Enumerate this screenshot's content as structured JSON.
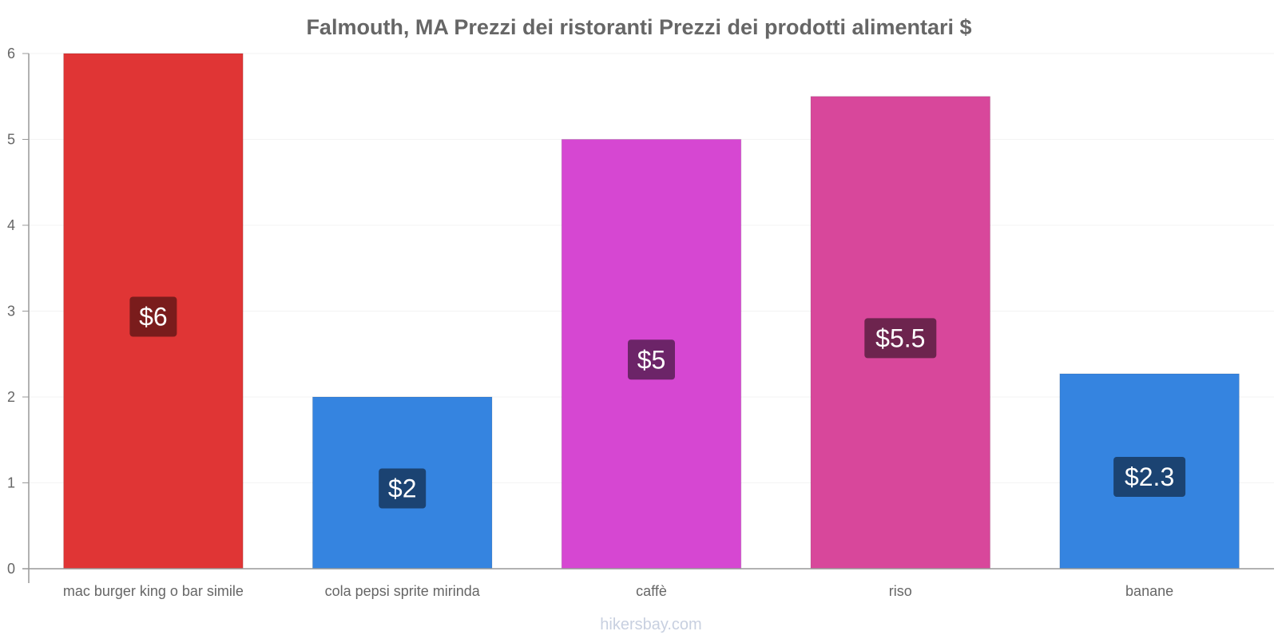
{
  "chart_data": {
    "type": "bar",
    "title": "Falmouth, MA Prezzi dei ristoranti Prezzi dei prodotti alimentari $",
    "xlabel": "",
    "ylabel": "",
    "ylim": [
      0,
      6
    ],
    "yticks": [
      0,
      1,
      2,
      3,
      4,
      5,
      6
    ],
    "ytick_labels": [
      "0",
      "1",
      "2",
      "3",
      "4",
      "5",
      "6"
    ],
    "grid": true,
    "legend": "none",
    "categories": [
      "mac burger king o bar simile",
      "cola pepsi sprite mirinda",
      "caffè",
      "riso",
      "banane"
    ],
    "values": [
      6,
      2,
      5,
      5.5,
      2.27
    ],
    "data_labels": [
      "$6",
      "$2",
      "$5",
      "$5.5",
      "$2.3"
    ],
    "bar_colors": [
      "#e03535",
      "#3584e0",
      "#d647d2",
      "#d8479b",
      "#3584e0"
    ],
    "label_bg_colors": [
      "#7a1c1c",
      "#1b4372",
      "#6c2468",
      "#6d244e",
      "#1b4372"
    ]
  },
  "footer": {
    "watermark": "hikersbay.com"
  },
  "colors": {
    "title": "#666666",
    "axis": "#999999",
    "tick_text": "#666666",
    "grid": "#f3f3f3",
    "watermark": "#c8d0e0"
  }
}
